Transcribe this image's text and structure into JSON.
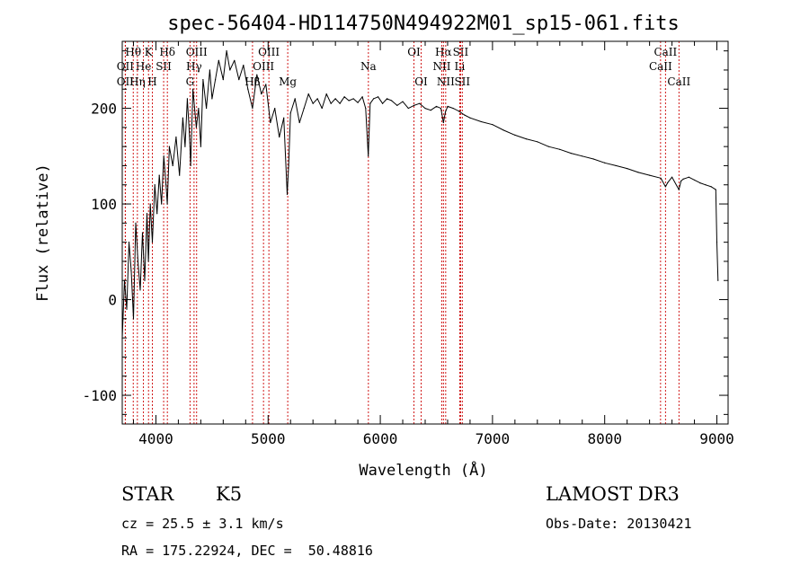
{
  "chart_data": {
    "type": "line",
    "title": "spec-56404-HD114750N494922M01_sp15-061.fits",
    "xlabel": "Wavelength (Å)",
    "ylabel": "Flux (relative)",
    "xlim": [
      3700,
      9100
    ],
    "ylim": [
      -130,
      270
    ],
    "x_ticks": [
      4000,
      5000,
      6000,
      7000,
      8000,
      9000
    ],
    "y_ticks": [
      -100,
      0,
      100,
      200
    ],
    "grid": false,
    "series": [
      {
        "color": "#000000",
        "x": [
          3700,
          3720,
          3740,
          3760,
          3780,
          3800,
          3820,
          3840,
          3860,
          3880,
          3900,
          3920,
          3933,
          3950,
          3968,
          3990,
          4010,
          4030,
          4050,
          4070,
          4090,
          4101,
          4120,
          4150,
          4180,
          4210,
          4240,
          4260,
          4280,
          4300,
          4310,
          4330,
          4360,
          4380,
          4400,
          4420,
          4450,
          4480,
          4500,
          4530,
          4560,
          4600,
          4630,
          4660,
          4700,
          4740,
          4780,
          4820,
          4861,
          4900,
          4940,
          4980,
          5020,
          5060,
          5100,
          5140,
          5170,
          5183,
          5200,
          5240,
          5280,
          5320,
          5360,
          5400,
          5440,
          5480,
          5520,
          5560,
          5600,
          5640,
          5680,
          5720,
          5760,
          5800,
          5840,
          5870,
          5893,
          5910,
          5940,
          5980,
          6020,
          6060,
          6100,
          6150,
          6200,
          6250,
          6300,
          6350,
          6400,
          6450,
          6500,
          6540,
          6563,
          6580,
          6600,
          6650,
          6700,
          6750,
          6800,
          6900,
          7000,
          7100,
          7200,
          7300,
          7400,
          7500,
          7600,
          7700,
          7800,
          7900,
          8000,
          8100,
          8200,
          8300,
          8400,
          8500,
          8542,
          8560,
          8600,
          8662,
          8680,
          8700,
          8750,
          8800,
          8850,
          8900,
          8950,
          8990,
          9000,
          9010
        ],
        "y": [
          -40,
          20,
          -10,
          60,
          30,
          -20,
          80,
          40,
          10,
          70,
          20,
          90,
          40,
          100,
          60,
          120,
          90,
          130,
          100,
          150,
          120,
          100,
          160,
          140,
          170,
          130,
          190,
          160,
          210,
          170,
          140,
          220,
          180,
          200,
          160,
          230,
          200,
          240,
          210,
          230,
          250,
          230,
          260,
          240,
          250,
          230,
          245,
          220,
          200,
          235,
          215,
          225,
          185,
          200,
          170,
          190,
          110,
          140,
          195,
          210,
          185,
          200,
          215,
          205,
          210,
          200,
          215,
          205,
          210,
          205,
          212,
          208,
          210,
          206,
          212,
          200,
          150,
          205,
          210,
          212,
          205,
          210,
          208,
          203,
          207,
          200,
          203,
          205,
          200,
          198,
          202,
          200,
          185,
          196,
          202,
          200,
          197,
          193,
          190,
          186,
          183,
          177,
          172,
          168,
          165,
          160,
          157,
          153,
          150,
          147,
          143,
          140,
          137,
          133,
          130,
          127,
          118,
          122,
          128,
          115,
          124,
          126,
          128,
          125,
          122,
          120,
          118,
          115,
          60,
          20
        ]
      }
    ],
    "line_marks": [
      {
        "label": "Hθ",
        "x": 3798,
        "row": 1
      },
      {
        "label": "OII",
        "x": 3727,
        "row": 2
      },
      {
        "label": "OII",
        "x": 3727,
        "row": 3
      },
      {
        "label": "K",
        "x": 3934,
        "row": 1
      },
      {
        "label": "He",
        "x": 3889,
        "row": 2
      },
      {
        "label": "Hη",
        "x": 3835,
        "row": 3
      },
      {
        "label": "Hδ",
        "x": 4102,
        "row": 1
      },
      {
        "label": "SII",
        "x": 4069,
        "row": 2
      },
      {
        "label": "H",
        "x": 3968,
        "row": 3
      },
      {
        "label": "OIII",
        "x": 4363,
        "row": 1
      },
      {
        "label": "Hγ",
        "x": 4340,
        "row": 2
      },
      {
        "label": "G",
        "x": 4304,
        "row": 3
      },
      {
        "label": "OIII",
        "x": 5007,
        "row": 1
      },
      {
        "label": "OIII",
        "x": 4959,
        "row": 2
      },
      {
        "label": "Hβ",
        "x": 4861,
        "row": 3
      },
      {
        "label": "Mg",
        "x": 5175,
        "row": 3
      },
      {
        "label": "Na",
        "x": 5894,
        "row": 2
      },
      {
        "label": "OI",
        "x": 6300,
        "row": 1
      },
      {
        "label": "OI",
        "x": 6364,
        "row": 3
      },
      {
        "label": "Hα",
        "x": 6563,
        "row": 1
      },
      {
        "label": "SII",
        "x": 6716,
        "row": 1
      },
      {
        "label": "NII",
        "x": 6548,
        "row": 2
      },
      {
        "label": "Li",
        "x": 6708,
        "row": 2
      },
      {
        "label": "NII",
        "x": 6583,
        "row": 3
      },
      {
        "label": "SII",
        "x": 6731,
        "row": 3
      },
      {
        "label": "CaII",
        "x": 8542,
        "row": 1
      },
      {
        "label": "CaII",
        "x": 8498,
        "row": 2
      },
      {
        "label": "CaII",
        "x": 8662,
        "row": 3
      }
    ]
  },
  "info": {
    "object_type": "STAR",
    "subclass": "K5",
    "redshift_line": "cz = 25.5 ± 3.1 km/s",
    "coords_line": "RA = 175.22924, DEC =  50.48816",
    "survey": "LAMOST DR3",
    "obs_date": "Obs-Date: 20130421"
  }
}
